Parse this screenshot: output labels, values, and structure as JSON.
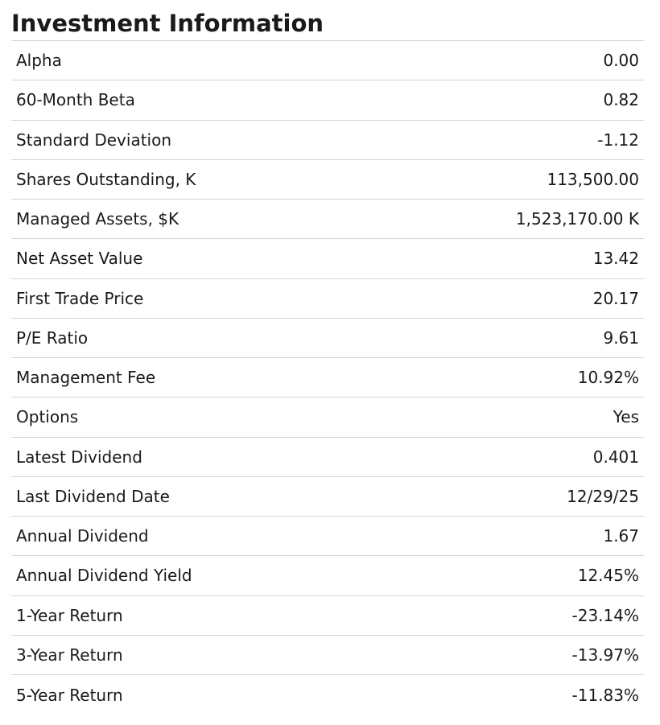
{
  "title": "Investment Information",
  "rows": [
    {
      "label": "Alpha",
      "value": "0.00"
    },
    {
      "label": "60-Month Beta",
      "value": "0.82"
    },
    {
      "label": "Standard Deviation",
      "value": "-1.12"
    },
    {
      "label": "Shares Outstanding, K",
      "value": "113,500.00"
    },
    {
      "label": "Managed Assets, $K",
      "value": "1,523,170.00 K"
    },
    {
      "label": "Net Asset Value",
      "value": "13.42"
    },
    {
      "label": "First Trade Price",
      "value": "20.17"
    },
    {
      "label": "P/E Ratio",
      "value": "9.61"
    },
    {
      "label": "Management Fee",
      "value": "10.92%"
    },
    {
      "label": "Options",
      "value": "Yes"
    },
    {
      "label": "Latest Dividend",
      "value": "0.401"
    },
    {
      "label": "Last Dividend Date",
      "value": "12/29/25"
    },
    {
      "label": "Annual Dividend",
      "value": "1.67"
    },
    {
      "label": "Annual Dividend Yield",
      "value": "12.45%"
    },
    {
      "label": "1-Year Return",
      "value": "-23.14%"
    },
    {
      "label": "3-Year Return",
      "value": "-13.97%"
    },
    {
      "label": "5-Year Return",
      "value": "-11.83%"
    }
  ]
}
